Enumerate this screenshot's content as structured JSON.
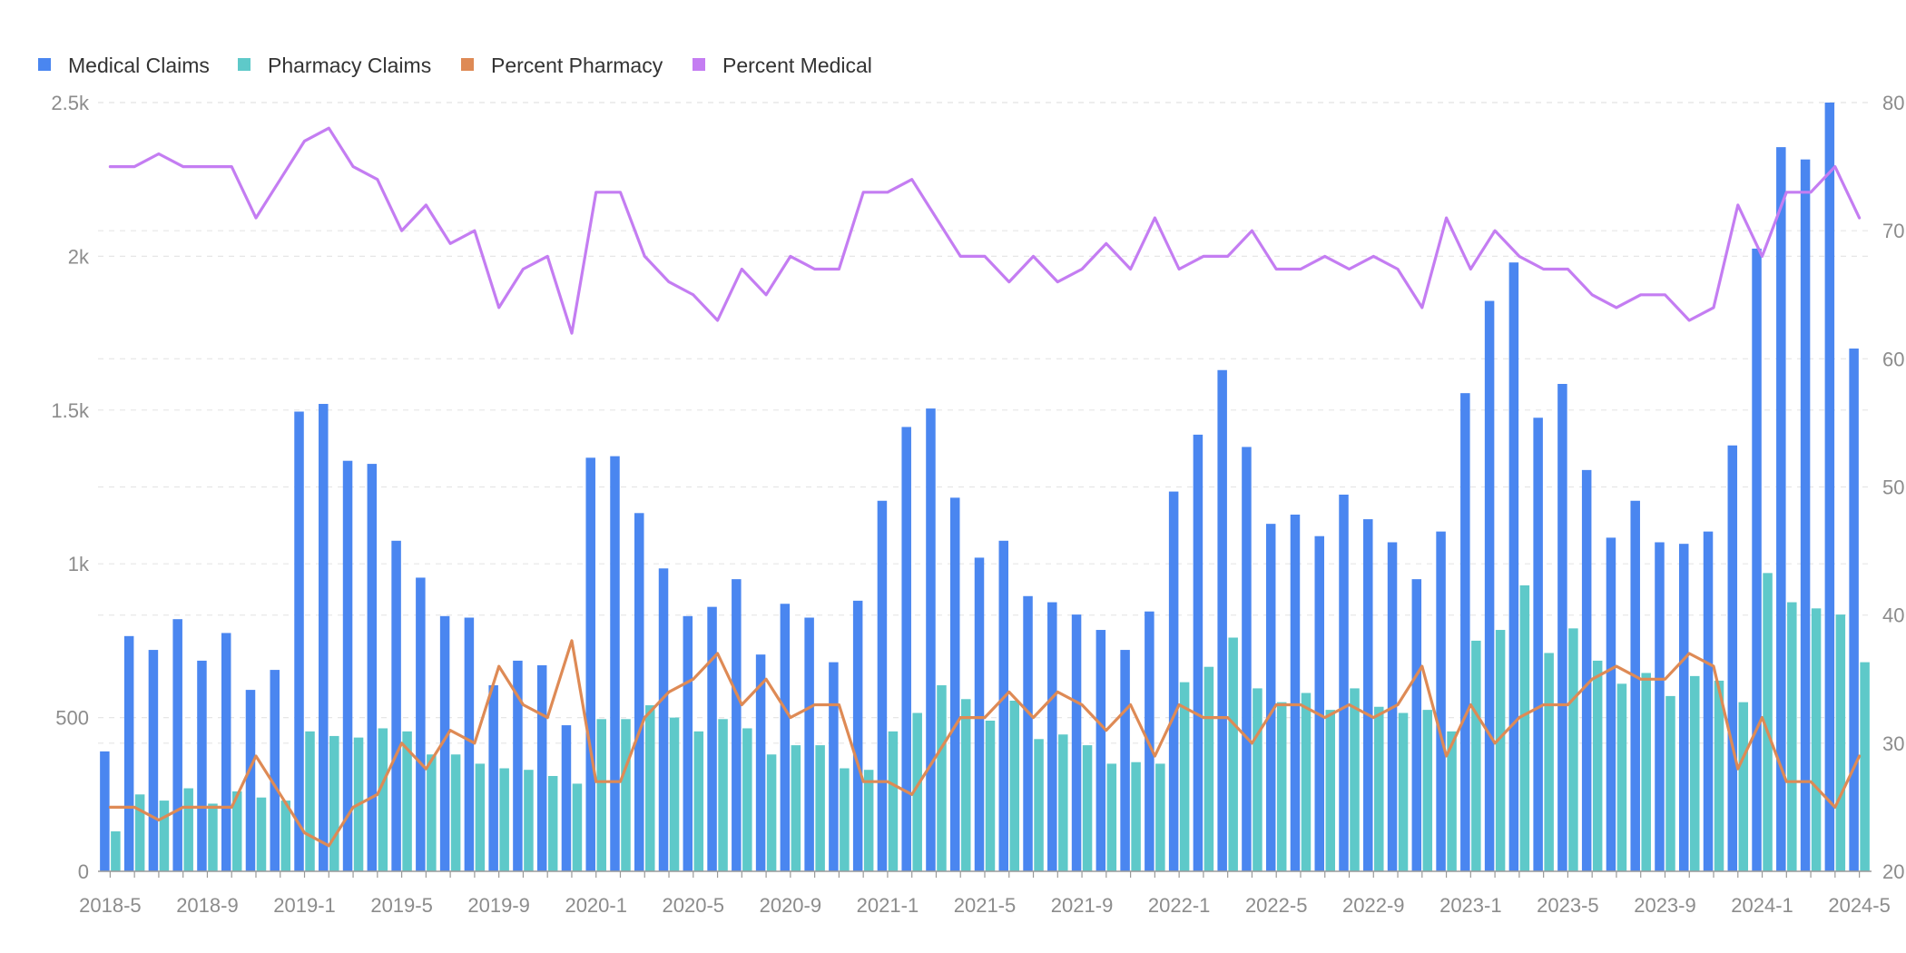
{
  "colors": {
    "medical": "#4a86f0",
    "pharmacy": "#5ec9c9",
    "percent_pharmacy": "#de8a55",
    "percent_medical": "#c47df2",
    "axis_text": "#8c8c8c",
    "legend_text": "#333333",
    "grid": "#e6e6e6"
  },
  "legend": [
    {
      "label": "Medical Claims",
      "color": "#4a86f0"
    },
    {
      "label": "Pharmacy Claims",
      "color": "#5ec9c9"
    },
    {
      "label": "Percent Pharmacy",
      "color": "#de8a55"
    },
    {
      "label": "Percent Medical",
      "color": "#c47df2"
    }
  ],
  "chart_data": {
    "type": "bar",
    "combo": "grouped bars with lines on secondary axis",
    "legend_position": "top-left",
    "grid": true,
    "categories": [
      "2018-5",
      "2018-6",
      "2018-7",
      "2018-8",
      "2018-9",
      "2018-10",
      "2018-11",
      "2018-12",
      "2019-1",
      "2019-2",
      "2019-3",
      "2019-4",
      "2019-5",
      "2019-6",
      "2019-7",
      "2019-8",
      "2019-9",
      "2019-10",
      "2019-11",
      "2019-12",
      "2020-1",
      "2020-2",
      "2020-3",
      "2020-4",
      "2020-5",
      "2020-6",
      "2020-7",
      "2020-8",
      "2020-9",
      "2020-10",
      "2020-11",
      "2020-12",
      "2021-1",
      "2021-2",
      "2021-3",
      "2021-4",
      "2021-5",
      "2021-6",
      "2021-7",
      "2021-8",
      "2021-9",
      "2021-10",
      "2021-11",
      "2021-12",
      "2022-1",
      "2022-2",
      "2022-3",
      "2022-4",
      "2022-5",
      "2022-6",
      "2022-7",
      "2022-8",
      "2022-9",
      "2022-10",
      "2022-11",
      "2022-12",
      "2023-1",
      "2023-2",
      "2023-3",
      "2023-4",
      "2023-5",
      "2023-6",
      "2023-7",
      "2023-8",
      "2023-9",
      "2023-10",
      "2023-11",
      "2023-12",
      "2024-1",
      "2024-2",
      "2024-3",
      "2024-4",
      "2024-5"
    ],
    "x_tick_labels": [
      "2018-5",
      "2018-9",
      "2019-1",
      "2019-5",
      "2019-9",
      "2020-1",
      "2020-5",
      "2020-9",
      "2021-1",
      "2021-5",
      "2021-9",
      "2022-1",
      "2022-5",
      "2022-9",
      "2023-1",
      "2023-5",
      "2023-9",
      "2024-1",
      "2024-5"
    ],
    "y_left": {
      "range": [
        0,
        2500
      ],
      "ticks": [
        0,
        500,
        1000,
        1500,
        2000,
        2500
      ],
      "tick_labels": [
        "0",
        "500",
        "1k",
        "1.5k",
        "2k",
        "2.5k"
      ]
    },
    "y_right": {
      "range": [
        20,
        80
      ],
      "ticks": [
        20,
        30,
        40,
        50,
        60,
        70,
        80
      ],
      "tick_labels": [
        "20",
        "30",
        "40",
        "50",
        "60",
        "70",
        "80"
      ]
    },
    "series": [
      {
        "name": "Medical Claims",
        "type": "bar",
        "axis": "left",
        "values": [
          390,
          765,
          720,
          820,
          685,
          775,
          590,
          655,
          1495,
          1520,
          1335,
          1325,
          1075,
          955,
          830,
          825,
          605,
          685,
          670,
          475,
          1345,
          1350,
          1165,
          985,
          830,
          860,
          950,
          705,
          870,
          825,
          680,
          880,
          1205,
          1445,
          1505,
          1215,
          1020,
          1075,
          895,
          875,
          835,
          785,
          720,
          845,
          1235,
          1420,
          1630,
          1380,
          1130,
          1160,
          1090,
          1225,
          1145,
          1070,
          950,
          1105,
          1555,
          1855,
          1980,
          1475,
          1585,
          1305,
          1085,
          1205,
          1070,
          1065,
          1105,
          1385,
          2025,
          2355,
          2315,
          2500,
          1700
        ]
      },
      {
        "name": "Pharmacy Claims",
        "type": "bar",
        "axis": "left",
        "values": [
          130,
          250,
          230,
          270,
          220,
          260,
          240,
          230,
          455,
          440,
          435,
          465,
          455,
          380,
          380,
          350,
          335,
          330,
          310,
          285,
          495,
          495,
          540,
          500,
          455,
          495,
          465,
          380,
          410,
          410,
          335,
          330,
          455,
          515,
          605,
          560,
          490,
          555,
          430,
          445,
          410,
          350,
          355,
          350,
          615,
          665,
          760,
          595,
          550,
          580,
          525,
          595,
          535,
          515,
          525,
          455,
          750,
          785,
          930,
          710,
          790,
          685,
          610,
          645,
          570,
          635,
          620,
          550,
          970,
          875,
          855,
          835,
          680
        ]
      },
      {
        "name": "Percent Pharmacy",
        "type": "line",
        "axis": "right",
        "values": [
          25,
          25,
          24,
          25,
          25,
          25,
          29,
          26,
          23,
          22,
          25,
          26,
          30,
          28,
          31,
          30,
          36,
          33,
          32,
          38,
          27,
          27,
          32,
          34,
          35,
          37,
          33,
          35,
          32,
          33,
          33,
          27,
          27,
          26,
          29,
          32,
          32,
          34,
          32,
          34,
          33,
          31,
          33,
          29,
          33,
          32,
          32,
          30,
          33,
          33,
          32,
          33,
          32,
          33,
          36,
          29,
          33,
          30,
          32,
          33,
          33,
          35,
          36,
          35,
          35,
          37,
          36,
          28,
          32,
          27,
          27,
          25,
          29
        ]
      },
      {
        "name": "Percent Medical",
        "type": "line",
        "axis": "right",
        "values": [
          75,
          75,
          76,
          75,
          75,
          75,
          71,
          74,
          77,
          78,
          75,
          74,
          70,
          72,
          69,
          70,
          64,
          67,
          68,
          62,
          73,
          73,
          68,
          66,
          65,
          63,
          67,
          65,
          68,
          67,
          67,
          73,
          73,
          74,
          71,
          68,
          68,
          66,
          68,
          66,
          67,
          69,
          67,
          71,
          67,
          68,
          68,
          70,
          67,
          67,
          68,
          67,
          68,
          67,
          64,
          71,
          67,
          70,
          68,
          67,
          67,
          65,
          64,
          65,
          65,
          63,
          64,
          72,
          68,
          73,
          73,
          75,
          71
        ]
      }
    ]
  }
}
